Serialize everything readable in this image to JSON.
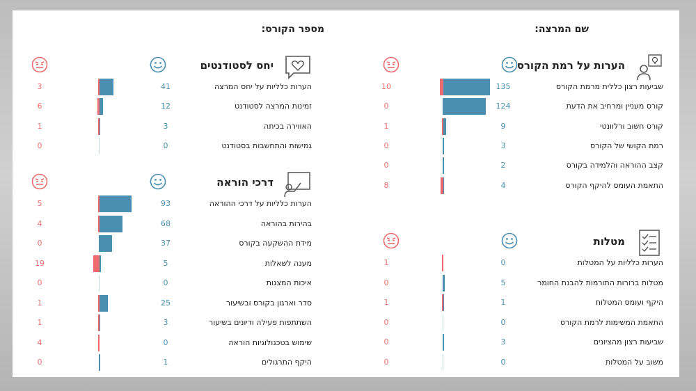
{
  "header": {
    "instructor_label": "שם המרצה:",
    "course_label": "מספר הקורס:"
  },
  "colors": {
    "positive": "#4a8fb0",
    "negative": "#ef6a6f"
  },
  "panels": [
    {
      "title": "הערות על רמת הקורס",
      "icon": "person-lightbulb-icon",
      "rows": [
        {
          "label": "שביעות רצון כללית מרמת הקורס",
          "pos": 135,
          "neg": 10
        },
        {
          "label": "קורס מעניין ומרחיב את הדעת",
          "pos": 124,
          "neg": 0
        },
        {
          "label": "קורס חשוב ורלוונטי",
          "pos": 9,
          "neg": 1
        },
        {
          "label": "רמת הקושי של הקורס",
          "pos": 3,
          "neg": 0
        },
        {
          "label": "קצב ההוראה והלמידה בקורס",
          "pos": 2,
          "neg": 0
        },
        {
          "label": "התאמת העומס להיקף הקורס",
          "pos": 4,
          "neg": 8
        }
      ]
    },
    {
      "title": "יחס לסטודנטים",
      "icon": "speech-bubble-heart-icon",
      "rows": [
        {
          "label": "הערות כלליות על יחס המרצה",
          "pos": 41,
          "neg": 3
        },
        {
          "label": "זמינות המרצה לסטודנט",
          "pos": 12,
          "neg": 6
        },
        {
          "label": "האווירה בכיתה",
          "pos": 3,
          "neg": 1
        },
        {
          "label": "גמישות והתחשבות בסטודנט",
          "pos": 0,
          "neg": 0
        }
      ]
    },
    {
      "title": "דרכי הוראה",
      "icon": "teacher-board-icon",
      "rows": [
        {
          "label": "הערות כלליות על דרכי ההוראה",
          "pos": 93,
          "neg": 5
        },
        {
          "label": "בהירות בהוראה",
          "pos": 68,
          "neg": 4
        },
        {
          "label": "מידת ההשקעה בקורס",
          "pos": 37,
          "neg": 0
        },
        {
          "label": "מענה לשאלות",
          "pos": 5,
          "neg": 19
        },
        {
          "label": "איכות המצגות",
          "pos": 0,
          "neg": 0
        },
        {
          "label": "סדר וארגון בקורס ובשיעור",
          "pos": 25,
          "neg": 1
        },
        {
          "label": "השתתפות פעילה ודיונים בשיעור",
          "pos": 3,
          "neg": 1
        },
        {
          "label": "שימוש בטכנולוגיות הוראה",
          "pos": 0,
          "neg": 4
        },
        {
          "label": "היקף התרגולים",
          "pos": 1,
          "neg": 0
        }
      ]
    },
    {
      "title": "מטלות",
      "icon": "checklist-icon",
      "rows": [
        {
          "label": "הערות כלליות על המטלות",
          "pos": 0,
          "neg": 1
        },
        {
          "label": "מטלות ברורות התורמות להבנת החומר",
          "pos": 5,
          "neg": 0
        },
        {
          "label": "היקף ועומס המטלות",
          "pos": 1,
          "neg": 1
        },
        {
          "label": "התאמת המשימות לרמת הקורס",
          "pos": 0,
          "neg": 0
        },
        {
          "label": "שביעות רצון מהציונים",
          "pos": 3,
          "neg": 0
        },
        {
          "label": "משוב על המטלות",
          "pos": 0,
          "neg": 0
        }
      ]
    }
  ]
}
